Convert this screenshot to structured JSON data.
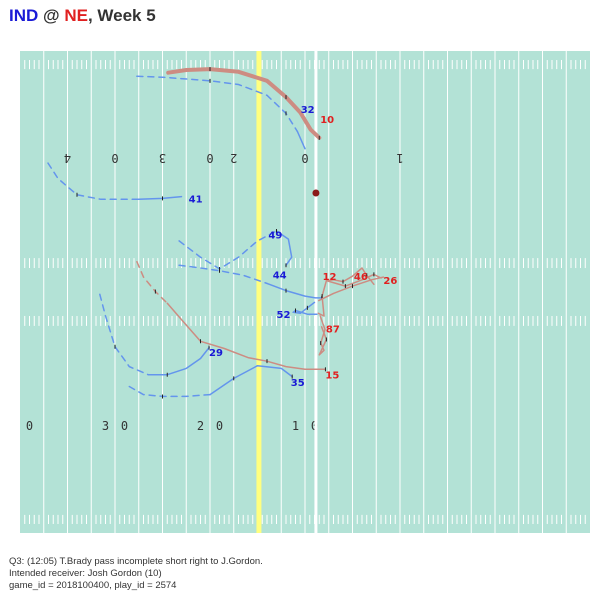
{
  "title": {
    "away": "IND",
    "at": " @ ",
    "home": "NE",
    "rest": ", Week 5"
  },
  "caption": {
    "line1": "Q3: (12:05) T.Brady pass incomplete short right to J.Gordon.",
    "line2": "Intended receiver: Josh Gordon (10)",
    "line3": "game_id = 2018100400, play_id = 2574"
  },
  "colors": {
    "field": "#b3e2d6",
    "line_of_scrimmage": "#ffff7f",
    "first_down_line": "#ffffff",
    "away_team": "#6495ed",
    "away_label": "#1a1ad6",
    "home_team": "#cd8c82",
    "home_label": "#e02020",
    "football": "#8b1a1a"
  },
  "chart_data": {
    "type": "scatter",
    "title": "IND @ NE, Week 5",
    "xlim": [
      0,
      120
    ],
    "ylim": [
      0,
      53.3
    ],
    "field": {
      "yard_numbers_top": [
        {
          "x": 10,
          "text": "4"
        },
        {
          "x": 20,
          "text": "0"
        },
        {
          "x": 30,
          "text": "3"
        },
        {
          "x": 40,
          "text": "0"
        },
        {
          "x": 45,
          "text": "2"
        },
        {
          "x": 60,
          "text": "0"
        },
        {
          "x": 80,
          "text": "1"
        }
      ],
      "yard_numbers_bottom": [
        {
          "x": 2,
          "text": "0"
        },
        {
          "x": 18,
          "text": "3"
        },
        {
          "x": 22,
          "text": "0"
        },
        {
          "x": 38,
          "text": "2"
        },
        {
          "x": 42,
          "text": "0"
        },
        {
          "x": 58,
          "text": "1"
        },
        {
          "x": 62,
          "text": "0"
        }
      ],
      "line_of_scrimmage_x": 50.3,
      "first_down_x": 62.3
    },
    "ball_path": [
      [
        62.3,
        37.6
      ]
    ],
    "players": [
      {
        "team": "away",
        "jersey": "32",
        "label_at": [
          59.1,
          46.9
        ],
        "path": [
          [
            24.6,
            50.5
          ],
          [
            30,
            50.4
          ],
          [
            40,
            50.0
          ],
          [
            46,
            49.6
          ],
          [
            52,
            48.4
          ],
          [
            56,
            46.4
          ],
          [
            58.4,
            44.4
          ],
          [
            60.0,
            42.5
          ]
        ],
        "dashed_until": 6
      },
      {
        "team": "away",
        "jersey": "41",
        "label_at": [
          35.5,
          37.0
        ],
        "path": [
          [
            5.9,
            40.9
          ],
          [
            8,
            39.2
          ],
          [
            12,
            37.4
          ],
          [
            17,
            36.9
          ],
          [
            25,
            36.9
          ],
          [
            30,
            37.0
          ],
          [
            34,
            37.2
          ]
        ],
        "dashed_until": 4
      },
      {
        "team": "away",
        "jersey": "49",
        "label_at": [
          52.3,
          33.0
        ],
        "path": [
          [
            33.5,
            32.3
          ],
          [
            38,
            30.5
          ],
          [
            42,
            29.2
          ],
          [
            46,
            30.5
          ],
          [
            50,
            32.3
          ],
          [
            54,
            33.4
          ],
          [
            56.5,
            32.5
          ],
          [
            57.2,
            30.5
          ],
          [
            56,
            29.6
          ]
        ],
        "dashed_until": 5
      },
      {
        "team": "away",
        "jersey": "44",
        "label_at": [
          53.2,
          28.6
        ],
        "path": [
          [
            33.5,
            29.6
          ],
          [
            38,
            29.3
          ],
          [
            42,
            29.0
          ],
          [
            47,
            28.5
          ],
          [
            52,
            27.6
          ],
          [
            56,
            26.8
          ],
          [
            60,
            26.2
          ],
          [
            62.2,
            26.0
          ],
          [
            63.5,
            26.0
          ]
        ],
        "dashed_until": 4
      },
      {
        "team": "away",
        "jersey": "52",
        "label_at": [
          54.0,
          24.2
        ],
        "path": [
          [
            62.5,
            24.2
          ],
          [
            60.5,
            24.2
          ],
          [
            58.0,
            24.6
          ],
          [
            57.5,
            24.4
          ],
          [
            59.0,
            24.3
          ],
          [
            60.5,
            24.9
          ],
          [
            62.0,
            25.5
          ]
        ],
        "dashed_until": 0
      },
      {
        "team": "away",
        "jersey": "29",
        "label_at": [
          39.8,
          20.0
        ],
        "path": [
          [
            16.8,
            26.4
          ],
          [
            18,
            24.0
          ],
          [
            20,
            20.6
          ],
          [
            23,
            18.4
          ],
          [
            27,
            17.5
          ],
          [
            31,
            17.5
          ],
          [
            35,
            18.2
          ],
          [
            38,
            19.3
          ],
          [
            39.8,
            20.5
          ]
        ],
        "dashed_until": 4
      },
      {
        "team": "away",
        "jersey": "35",
        "label_at": [
          57.0,
          16.7
        ],
        "path": [
          [
            23.0,
            16.2
          ],
          [
            26,
            15.3
          ],
          [
            30,
            15.1
          ],
          [
            35,
            15.1
          ],
          [
            40,
            15.3
          ],
          [
            45,
            17.1
          ],
          [
            50,
            18.5
          ],
          [
            55,
            18.2
          ],
          [
            57.3,
            17.3
          ]
        ],
        "dashed_until": 4
      },
      {
        "team": "home",
        "jersey": "10",
        "label_at": [
          63.2,
          45.8
        ],
        "path": [
          [
            31.2,
            50.9
          ],
          [
            35,
            51.2
          ],
          [
            40,
            51.3
          ],
          [
            46,
            51.0
          ],
          [
            52,
            50.0
          ],
          [
            56,
            48.2
          ],
          [
            59,
            46.5
          ],
          [
            61.2,
            44.6
          ],
          [
            63.0,
            43.7
          ]
        ],
        "dashed_until": 0,
        "bold": true
      },
      {
        "team": "home",
        "jersey": "12",
        "label_at": [
          63.7,
          28.4
        ],
        "path": [
          [
            62.8,
            24.3
          ],
          [
            64,
            24.0
          ],
          [
            63.6,
            26.2
          ],
          [
            64.5,
            27.9
          ],
          [
            66,
            28.0
          ],
          [
            68,
            27.8
          ],
          [
            70,
            28.4
          ],
          [
            72,
            29.3
          ],
          [
            73,
            28.5
          ],
          [
            74.5,
            27.5
          ]
        ],
        "dashed_until": 0
      },
      {
        "team": "home",
        "jersey": "46",
        "label_at": [
          70.3,
          28.4
        ],
        "path": [
          [
            64.5,
            27.9
          ],
          [
            66.5,
            27.6
          ],
          [
            68.5,
            27.3
          ],
          [
            70,
            27.6
          ],
          [
            72,
            28.0
          ],
          [
            74.5,
            28.6
          ],
          [
            76,
            28.2
          ]
        ],
        "dashed_until": 0
      },
      {
        "team": "home",
        "jersey": "26",
        "label_at": [
          76.5,
          28.0
        ],
        "path": [
          [
            62.9,
            25.7
          ],
          [
            66,
            26.5
          ],
          [
            70,
            27.3
          ],
          [
            74,
            28.0
          ],
          [
            76.5,
            28.3
          ]
        ],
        "dashed_until": 0
      },
      {
        "team": "home",
        "jersey": "87",
        "label_at": [
          64.4,
          22.6
        ],
        "path": [
          [
            63.2,
            24.0
          ],
          [
            64.2,
            22.5
          ],
          [
            63.3,
            21.0
          ],
          [
            64.0,
            20.2
          ],
          [
            63.0,
            19.7
          ],
          [
            64.5,
            21.4
          ],
          [
            63.5,
            22.8
          ]
        ],
        "dashed_until": 0
      },
      {
        "team": "home",
        "jersey": "15",
        "label_at": [
          64.3,
          17.5
        ],
        "path": [
          [
            24.6,
            30.0
          ],
          [
            26,
            28.3
          ],
          [
            28.5,
            26.7
          ],
          [
            31,
            25.4
          ],
          [
            34,
            23.6
          ],
          [
            38,
            21.2
          ],
          [
            43,
            20.4
          ],
          [
            48,
            19.4
          ],
          [
            52,
            19.0
          ],
          [
            56,
            18.4
          ],
          [
            60,
            18.1
          ],
          [
            64.3,
            18.1
          ]
        ],
        "dashed_until": 3
      }
    ]
  }
}
